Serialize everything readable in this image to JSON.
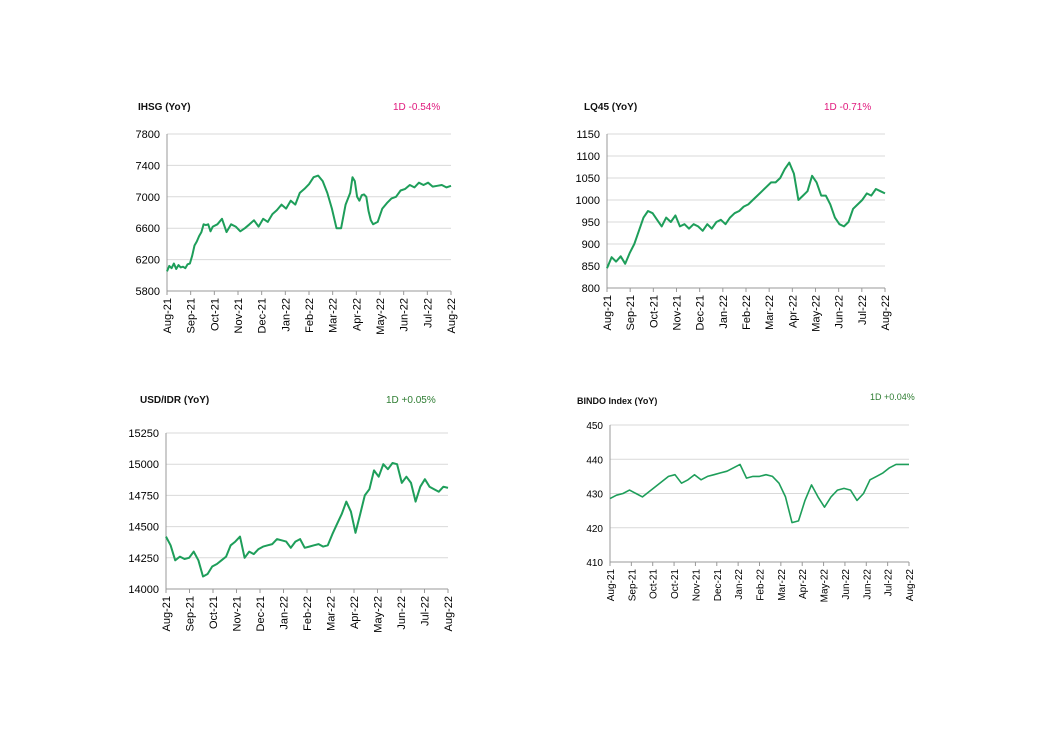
{
  "chart_data": [
    {
      "type": "line",
      "title": "IHSG (YoY)",
      "change_label": "1D -0.54%",
      "change_color": "#e0197d",
      "line_color": "#1e9e5a",
      "ylim": [
        5800,
        7800
      ],
      "yticks": [
        5800,
        6200,
        6600,
        7000,
        7400,
        7800
      ],
      "xticks": [
        "Aug-21",
        "Sep-21",
        "Oct-21",
        "Nov-21",
        "Dec-21",
        "Jan-22",
        "Feb-22",
        "Mar-22",
        "Apr-22",
        "May-22",
        "Jun-22",
        "Jul-22",
        "Aug-22"
      ],
      "series": [
        {
          "x": [
            0,
            0.1,
            0.2,
            0.3,
            0.4,
            0.5,
            0.6,
            0.7,
            0.8,
            0.9,
            1.0,
            1.1,
            1.2,
            1.3,
            1.4,
            1.5,
            1.6,
            1.7,
            1.8,
            1.9,
            2.0,
            2.2,
            2.4,
            2.6,
            2.8,
            3.0,
            3.2,
            3.4,
            3.6,
            3.8,
            4.0,
            4.2,
            4.4,
            4.6,
            4.8,
            5.0,
            5.2,
            5.4,
            5.6,
            5.8,
            6.0,
            6.2,
            6.4,
            6.6,
            6.8,
            7.0,
            7.2,
            7.4,
            7.6,
            7.8,
            8.0,
            8.1,
            8.2,
            8.3,
            8.4,
            8.5,
            8.6,
            8.7,
            8.8,
            8.9,
            9.0,
            9.2,
            9.4,
            9.6,
            9.8,
            10.0,
            10.2,
            10.4,
            10.6,
            10.8,
            11.0,
            11.2,
            11.4,
            11.6,
            11.8,
            12.0,
            12.2,
            12.4
          ],
          "values": [
            6050,
            6120,
            6090,
            6150,
            6080,
            6130,
            6100,
            6110,
            6090,
            6140,
            6150,
            6250,
            6380,
            6430,
            6500,
            6550,
            6650,
            6640,
            6650,
            6560,
            6620,
            6650,
            6720,
            6550,
            6650,
            6620,
            6560,
            6600,
            6650,
            6700,
            6620,
            6720,
            6680,
            6780,
            6830,
            6900,
            6850,
            6950,
            6900,
            7050,
            7100,
            7160,
            7250,
            7270,
            7200,
            7050,
            6850,
            6600,
            6600,
            6900,
            7050,
            7250,
            7200,
            7000,
            6950,
            7020,
            7030,
            7000,
            6820,
            6700,
            6650,
            6680,
            6850,
            6920,
            6980,
            7000,
            7080,
            7100,
            7150,
            7120,
            7180,
            7150,
            7180,
            7130,
            7140,
            7150,
            7120,
            7140
          ]
        }
      ]
    },
    {
      "type": "line",
      "title": "LQ45 (YoY)",
      "change_label": "1D -0.71%",
      "change_color": "#e0197d",
      "line_color": "#1e9e5a",
      "ylim": [
        800,
        1150
      ],
      "yticks": [
        800,
        850,
        900,
        950,
        1000,
        1050,
        1100,
        1150
      ],
      "xticks": [
        "Aug-21",
        "Sep-21",
        "Oct-21",
        "Nov-21",
        "Dec-21",
        "Jan-22",
        "Feb-22",
        "Mar-22",
        "Apr-22",
        "May-22",
        "Jun-22",
        "Jul-22",
        "Aug-22"
      ],
      "series": [
        {
          "x": [
            0,
            0.2,
            0.4,
            0.6,
            0.8,
            1.0,
            1.2,
            1.4,
            1.6,
            1.8,
            2.0,
            2.2,
            2.4,
            2.6,
            2.8,
            3.0,
            3.2,
            3.4,
            3.6,
            3.8,
            4.0,
            4.2,
            4.4,
            4.6,
            4.8,
            5.0,
            5.2,
            5.4,
            5.6,
            5.8,
            6.0,
            6.2,
            6.4,
            6.6,
            6.8,
            7.0,
            7.2,
            7.4,
            7.6,
            7.8,
            8.0,
            8.2,
            8.4,
            8.6,
            8.8,
            9.0,
            9.2,
            9.4,
            9.6,
            9.8,
            10.0,
            10.2,
            10.4,
            10.6,
            10.8,
            11.0,
            11.2,
            11.4,
            11.6,
            11.8,
            12.0,
            12.2
          ],
          "values": [
            845,
            870,
            860,
            872,
            855,
            880,
            900,
            930,
            960,
            975,
            970,
            955,
            940,
            960,
            950,
            965,
            940,
            945,
            935,
            945,
            940,
            930,
            945,
            935,
            950,
            955,
            945,
            960,
            970,
            975,
            985,
            990,
            1000,
            1010,
            1020,
            1030,
            1040,
            1040,
            1050,
            1070,
            1085,
            1060,
            1000,
            1010,
            1020,
            1055,
            1040,
            1010,
            1010,
            990,
            960,
            945,
            940,
            950,
            980,
            990,
            1000,
            1015,
            1010,
            1025,
            1020,
            1015
          ]
        }
      ]
    },
    {
      "type": "line",
      "title": "USD/IDR  (YoY)",
      "change_label": "1D +0.05%",
      "change_color": "#2e7d32",
      "line_color": "#1e9e5a",
      "ylim": [
        14000,
        15250
      ],
      "yticks": [
        14000,
        14250,
        14500,
        14750,
        15000,
        15250
      ],
      "xticks": [
        "Aug-21",
        "Sep-21",
        "Oct-21",
        "Nov-21",
        "Dec-21",
        "Jan-22",
        "Feb-22",
        "Mar-22",
        "Apr-22",
        "May-22",
        "Jun-22",
        "Jul-22",
        "Aug-22"
      ],
      "series": [
        {
          "x": [
            0,
            0.2,
            0.4,
            0.6,
            0.8,
            1.0,
            1.2,
            1.4,
            1.6,
            1.8,
            2.0,
            2.2,
            2.4,
            2.6,
            2.8,
            3.0,
            3.2,
            3.4,
            3.6,
            3.8,
            4.0,
            4.2,
            4.4,
            4.6,
            4.8,
            5.0,
            5.2,
            5.4,
            5.6,
            5.8,
            6.0,
            6.2,
            6.4,
            6.6,
            6.8,
            7.0,
            7.2,
            7.4,
            7.6,
            7.8,
            8.0,
            8.2,
            8.4,
            8.6,
            8.8,
            9.0,
            9.2,
            9.4,
            9.6,
            9.8,
            10.0,
            10.2,
            10.4,
            10.6,
            10.8,
            11.0,
            11.2,
            11.4,
            11.6,
            11.8,
            12.0,
            12.2
          ],
          "values": [
            14420,
            14350,
            14230,
            14260,
            14240,
            14250,
            14300,
            14230,
            14100,
            14120,
            14180,
            14200,
            14230,
            14260,
            14350,
            14380,
            14420,
            14250,
            14300,
            14280,
            14320,
            14340,
            14350,
            14360,
            14400,
            14390,
            14380,
            14330,
            14380,
            14400,
            14330,
            14340,
            14350,
            14360,
            14340,
            14350,
            14440,
            14520,
            14600,
            14700,
            14620,
            14450,
            14600,
            14750,
            14800,
            14950,
            14900,
            15000,
            14960,
            15010,
            15000,
            14850,
            14900,
            14850,
            14700,
            14820,
            14880,
            14820,
            14800,
            14780,
            14820,
            14810
          ]
        }
      ]
    },
    {
      "type": "line",
      "title": "BINDO Index (YoY)",
      "change_label": "1D +0.04%",
      "change_color": "#2e7d32",
      "line_color": "#1e9e5a",
      "ylim": [
        410,
        450
      ],
      "yticks": [
        410,
        420,
        430,
        440,
        450
      ],
      "xticks": [
        "Aug-21",
        "Sep-21",
        "Oct-21",
        "Oct-21",
        "Nov-21",
        "Dec-21",
        "Jan-22",
        "Feb-22",
        "Mar-22",
        "Apr-22",
        "May-22",
        "Jun-22",
        "Jun-22",
        "Jul-22",
        "Aug-22"
      ],
      "series": [
        {
          "x": [
            0,
            0.3,
            0.6,
            0.9,
            1.2,
            1.5,
            1.8,
            2.1,
            2.4,
            2.7,
            3.0,
            3.3,
            3.6,
            3.9,
            4.2,
            4.5,
            4.8,
            5.1,
            5.4,
            5.7,
            6.0,
            6.3,
            6.6,
            6.9,
            7.2,
            7.5,
            7.8,
            8.1,
            8.4,
            8.7,
            9.0,
            9.3,
            9.6,
            9.9,
            10.2,
            10.5,
            10.8,
            11.1,
            11.4,
            11.7,
            12.0,
            12.3,
            12.6,
            12.9,
            13.2,
            13.5,
            13.8
          ],
          "values": [
            428.5,
            429.5,
            430,
            431,
            430,
            429,
            430.5,
            432,
            433.5,
            435,
            435.5,
            433,
            434,
            435.5,
            434,
            435,
            435.5,
            436,
            436.5,
            437.5,
            438.5,
            434.5,
            435,
            435,
            435.5,
            435,
            433,
            429,
            421.5,
            422,
            428,
            432.5,
            429,
            426,
            429,
            431,
            431.5,
            431,
            428,
            430,
            434,
            435,
            436,
            437.5,
            438.5,
            438.5,
            438.5
          ]
        }
      ]
    }
  ]
}
